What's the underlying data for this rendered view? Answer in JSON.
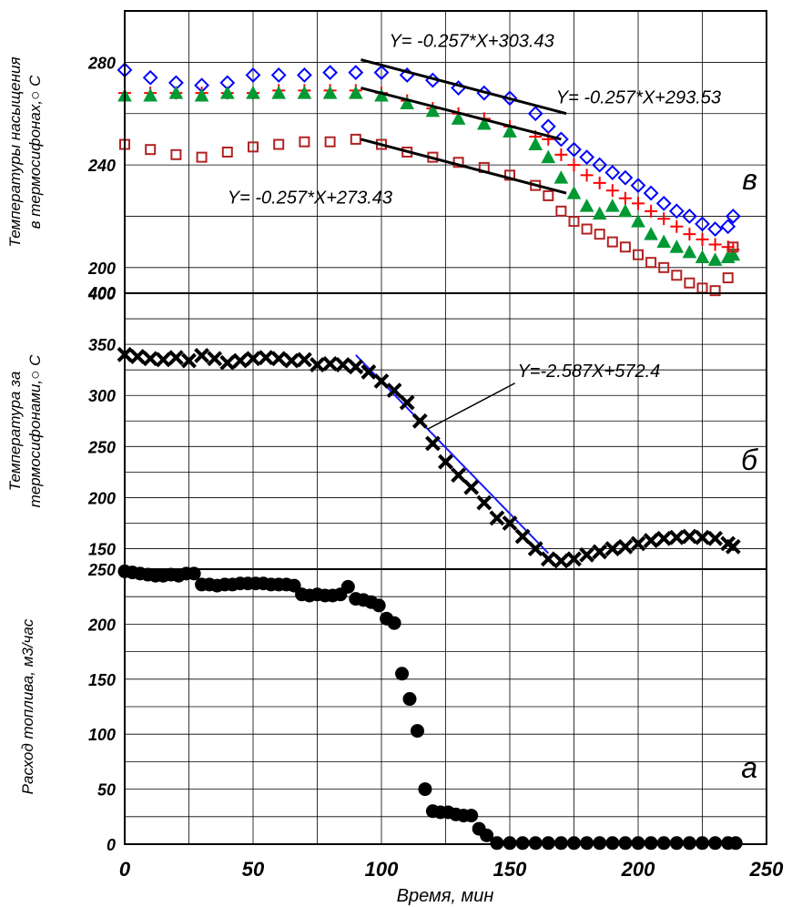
{
  "chart_data": {
    "type": "scatter",
    "x_ticks": [
      "0",
      "50",
      "100",
      "150",
      "200",
      "250"
    ],
    "xlabel": "Время, мин",
    "xlim": [
      0,
      250
    ],
    "panels": [
      {
        "panel_label": "в",
        "ylabel_lines": [
          "Температуры насыщения",
          "в термосифонах,○ С"
        ],
        "ylim": [
          190,
          300
        ],
        "y_ticks": [
          "200",
          "240",
          "280",
          ""
        ],
        "y_tick_values": [
          200,
          240,
          280,
          300
        ],
        "series": [
          {
            "marker": "diamond",
            "color": "#0000ff",
            "x": [
              0,
              10,
              20,
              30,
              40,
              50,
              60,
              70,
              80,
              90,
              100,
              110,
              120,
              130,
              140,
              150,
              160,
              165,
              170,
              175,
              180,
              185,
              190,
              195,
              200,
              205,
              210,
              215,
              220,
              225,
              230,
              235,
              237
            ],
            "y": [
              277,
              274,
              272,
              271,
              272,
              275,
              275,
              275,
              276,
              276,
              276,
              275,
              273,
              270,
              268,
              266,
              260,
              255,
              250,
              246,
              243,
              240,
              237,
              235,
              232,
              229,
              225,
              222,
              220,
              217,
              215,
              216,
              220
            ]
          },
          {
            "marker": "plus",
            "color": "#ff0000",
            "x": [
              0,
              10,
              20,
              30,
              40,
              50,
              60,
              70,
              80,
              90,
              100,
              110,
              120,
              130,
              140,
              150,
              160,
              165,
              170,
              175,
              180,
              185,
              190,
              195,
              200,
              205,
              210,
              215,
              220,
              225,
              230,
              235,
              237
            ],
            "y": [
              268,
              268,
              268,
              268,
              268,
              268,
              269,
              269,
              269,
              269,
              268,
              265,
              262,
              260,
              258,
              255,
              251,
              250,
              244,
              240,
              236,
              233,
              230,
              227,
              225,
              222,
              219,
              216,
              213,
              211,
              209,
              208,
              207
            ]
          },
          {
            "marker": "triangle",
            "color": "#009933",
            "x": [
              0,
              10,
              20,
              30,
              40,
              50,
              60,
              70,
              80,
              90,
              100,
              110,
              120,
              130,
              140,
              150,
              160,
              165,
              170,
              175,
              180,
              185,
              190,
              195,
              200,
              205,
              210,
              215,
              220,
              225,
              230,
              235,
              237
            ],
            "y": [
              267,
              267,
              268,
              267,
              268,
              268,
              268,
              268,
              268,
              268,
              267,
              264,
              261,
              258,
              256,
              253,
              248,
              243,
              235,
              229,
              224,
              221,
              224,
              222,
              218,
              213,
              210,
              208,
              206,
              204,
              203,
              204,
              205
            ]
          },
          {
            "marker": "square",
            "color": "#b22222",
            "x": [
              0,
              10,
              20,
              30,
              40,
              50,
              60,
              70,
              80,
              90,
              100,
              110,
              120,
              130,
              140,
              150,
              160,
              165,
              170,
              175,
              180,
              185,
              190,
              195,
              200,
              205,
              210,
              215,
              220,
              225,
              230,
              235,
              237
            ],
            "y": [
              248,
              246,
              244,
              243,
              245,
              247,
              248,
              249,
              249,
              250,
              248,
              245,
              243,
              241,
              239,
              236,
              232,
              228,
              222,
              218,
              215,
              213,
              210,
              208,
              205,
              202,
              200,
              197,
              194,
              192,
              191,
              196,
              208
            ]
          }
        ],
        "trendlines": [
          {
            "x": [
              92,
              172
            ],
            "y": [
              281,
              260
            ]
          },
          {
            "x": [
              92,
              170
            ],
            "y": [
              270,
              250
            ]
          },
          {
            "x": [
              92,
              172
            ],
            "y": [
              250,
              229
            ]
          }
        ],
        "annotations": [
          {
            "text": "Y= -0.257*X+303.43",
            "x": 103,
            "y": 286
          },
          {
            "text": "Y= -0.257*X+293.53",
            "x": 168,
            "y": 264
          },
          {
            "text": "Y= -0.257*X+273.43",
            "x": 40,
            "y": 225
          }
        ]
      },
      {
        "panel_label": "б",
        "ylabel_lines": [
          "Температура за",
          "термосифонами,○ С"
        ],
        "ylim": [
          130,
          400
        ],
        "y_ticks": [
          "150",
          "200",
          "250",
          "300",
          "350",
          "400"
        ],
        "y_tick_values": [
          150,
          200,
          250,
          300,
          350,
          400
        ],
        "series": [
          {
            "marker": "x",
            "color": "#000000",
            "x": [
              0,
              5,
              10,
              15,
              20,
              25,
              30,
              35,
              40,
              45,
              50,
              55,
              60,
              65,
              70,
              75,
              80,
              85,
              90,
              95,
              100,
              105,
              110,
              115,
              120,
              125,
              130,
              135,
              140,
              145,
              150,
              155,
              160,
              165,
              170,
              175,
              180,
              185,
              190,
              195,
              200,
              205,
              210,
              215,
              220,
              225,
              230,
              235,
              237
            ],
            "y": [
              340,
              338,
              336,
              335,
              337,
              334,
              339,
              336,
              332,
              334,
              336,
              337,
              336,
              334,
              335,
              330,
              331,
              330,
              328,
              323,
              314,
              305,
              293,
              275,
              253,
              235,
              222,
              210,
              195,
              180,
              175,
              162,
              150,
              140,
              138,
              140,
              144,
              147,
              150,
              152,
              155,
              158,
              160,
              161,
              162,
              161,
              160,
              155,
              152
            ]
          }
        ],
        "trendlines": [
          {
            "x": [
              90,
              165
            ],
            "y": [
              339.6,
              145.5
            ]
          }
        ],
        "annotations": [
          {
            "text": "Y=-2.587X+572.4",
            "x": 153,
            "y": 318
          }
        ]
      },
      {
        "panel_label": "а",
        "ylabel_lines": [
          "Расход топлива, м3/час"
        ],
        "ylim": [
          0,
          250
        ],
        "y_ticks": [
          "0",
          "50",
          "100",
          "150",
          "200",
          "250"
        ],
        "y_tick_values": [
          0,
          50,
          100,
          150,
          200,
          250
        ],
        "series": [
          {
            "marker": "circle",
            "color": "#000000",
            "x": [
              0,
              3,
              6,
              9,
              12,
              15,
              18,
              21,
              24,
              27,
              30,
              33,
              36,
              39,
              42,
              45,
              48,
              51,
              54,
              57,
              60,
              63,
              66,
              69,
              72,
              75,
              78,
              81,
              84,
              87,
              90,
              93,
              96,
              99,
              102,
              105,
              108,
              111,
              114,
              117,
              120,
              123,
              126,
              129,
              132,
              135,
              138,
              141,
              145,
              150,
              155,
              160,
              165,
              170,
              175,
              180,
              185,
              190,
              195,
              200,
              205,
              210,
              215,
              220,
              225,
              230,
              235,
              238
            ],
            "y": [
              248,
              247,
              246,
              245,
              244,
              244,
              245,
              244,
              246,
              246,
              236,
              236,
              235,
              236,
              236,
              237,
              237,
              237,
              237,
              236,
              236,
              236,
              235,
              227,
              226,
              227,
              226,
              226,
              227,
              234,
              223,
              222,
              220,
              217,
              205,
              201,
              155,
              132,
              103,
              50,
              30,
              29,
              29,
              27,
              26,
              26,
              14,
              8,
              1,
              1,
              1,
              1,
              1,
              1,
              1,
              1,
              1,
              1,
              1,
              1,
              1,
              1,
              1,
              1,
              1,
              1,
              1,
              1
            ]
          }
        ],
        "trendlines": [],
        "annotations": []
      }
    ]
  }
}
